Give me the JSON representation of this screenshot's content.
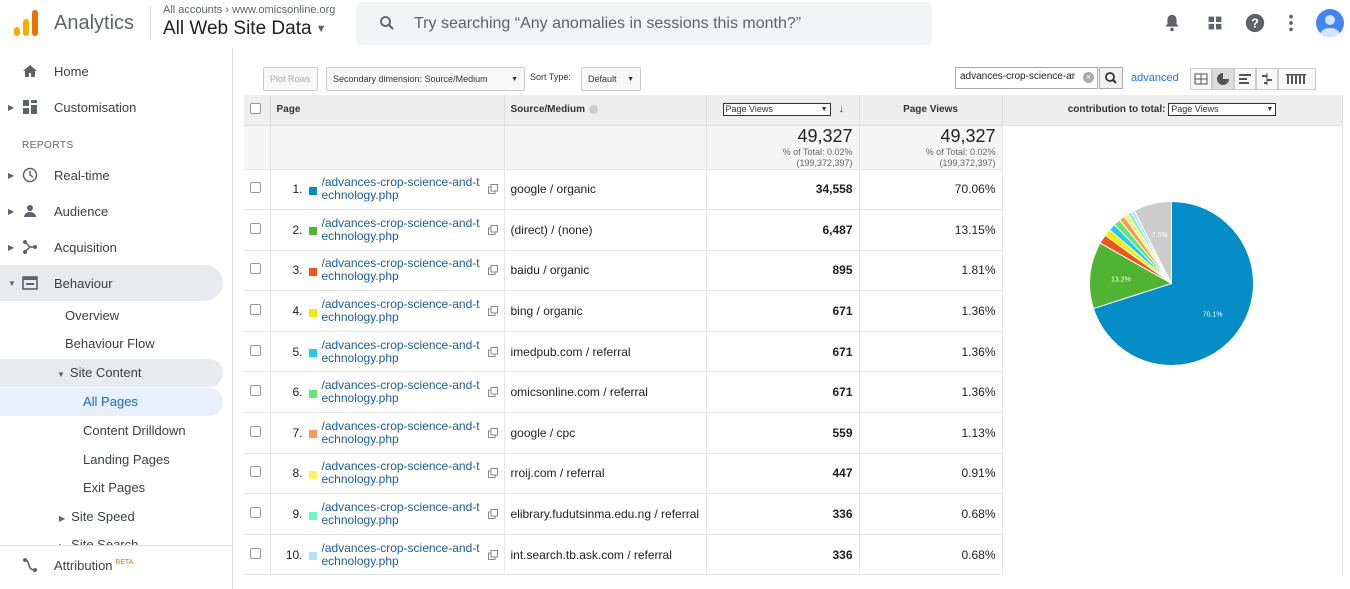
{
  "header": {
    "app_name": "Analytics",
    "account_crumb": "All accounts › www.omicsonline.org",
    "view_name": "All Web Site Data",
    "search_placeholder": "Try searching “Any anomalies in sessions this month?”"
  },
  "sidebar": {
    "home": "Home",
    "customisation": "Customisation",
    "reports_section": "REPORTS",
    "realtime": "Real-time",
    "audience": "Audience",
    "acquisition": "Acquisition",
    "behaviour": "Behaviour",
    "overview": "Overview",
    "behaviour_flow": "Behaviour Flow",
    "site_content": "Site Content",
    "all_pages": "All Pages",
    "content_drilldown": "Content Drilldown",
    "landing_pages": "Landing Pages",
    "exit_pages": "Exit Pages",
    "site_speed": "Site Speed",
    "site_search": "Site Search",
    "attribution": "Attribution",
    "beta": "BETA"
  },
  "toolbar": {
    "plot_rows": "Plot Rows",
    "secondary_dimension": "Secondary dimension: Source/Medium",
    "sort_type_label": "Sort Type:",
    "sort_type_value": "Default",
    "filter_value": "advances-crop-science-ar",
    "advanced": "advanced"
  },
  "table": {
    "col_page": "Page",
    "col_source": "Source/Medium",
    "col_metric_select": "Page Views",
    "col_metric2": "Page Views",
    "col_contribution_label": "contribution to total:",
    "col_contribution_select": "Page Views",
    "totals": {
      "value1": "49,327",
      "pct1": "% of Total: 0.02%",
      "base1": "(199,372,397)",
      "value2": "49,327",
      "pct2": "% of Total: 0.02%",
      "base2": "(199,372,397)"
    },
    "rows": [
      {
        "idx": "1.",
        "page": "/advances-crop-science-and-technology.php",
        "source": "google / organic",
        "views": "34,558",
        "pct": "70.06%",
        "color": "#058dc7"
      },
      {
        "idx": "2.",
        "page": "/advances-crop-science-and-technology.php",
        "source": "(direct) / (none)",
        "views": "6,487",
        "pct": "13.15%",
        "color": "#50b432"
      },
      {
        "idx": "3.",
        "page": "/advances-crop-science-and-technology.php",
        "source": "baidu / organic",
        "views": "895",
        "pct": "1.81%",
        "color": "#ed561b"
      },
      {
        "idx": "4.",
        "page": "/advances-crop-science-and-technology.php",
        "source": "bing / organic",
        "views": "671",
        "pct": "1.36%",
        "color": "#edef00"
      },
      {
        "idx": "5.",
        "page": "/advances-crop-science-and-technology.php",
        "source": "imedpub.com / referral",
        "views": "671",
        "pct": "1.36%",
        "color": "#24cbe5"
      },
      {
        "idx": "6.",
        "page": "/advances-crop-science-and-technology.php",
        "source": "omicsonline.com / referral",
        "views": "671",
        "pct": "1.36%",
        "color": "#64e572"
      },
      {
        "idx": "7.",
        "page": "/advances-crop-science-and-technology.php",
        "source": "google / cpc",
        "views": "559",
        "pct": "1.13%",
        "color": "#ff9655"
      },
      {
        "idx": "8.",
        "page": "/advances-crop-science-and-technology.php",
        "source": "rroij.com / referral",
        "views": "447",
        "pct": "0.91%",
        "color": "#fff263"
      },
      {
        "idx": "9.",
        "page": "/advances-crop-science-and-technology.php",
        "source": "elibrary.fudutsinma.edu.ng / referral",
        "views": "336",
        "pct": "0.68%",
        "color": "#6af9c4"
      },
      {
        "idx": "10.",
        "page": "/advances-crop-science-and-technology.php",
        "source": "int.search.tb.ask.com / referral",
        "views": "336",
        "pct": "0.68%",
        "color": "#b2deff"
      }
    ]
  },
  "chart_data": {
    "type": "pie",
    "slices": [
      {
        "value": 70.06,
        "color": "#058dc7",
        "label": "70.1%"
      },
      {
        "value": 13.15,
        "color": "#50b432",
        "label": "13.2%"
      },
      {
        "value": 1.81,
        "color": "#ed561b",
        "label": ""
      },
      {
        "value": 1.36,
        "color": "#edef00",
        "label": ""
      },
      {
        "value": 1.36,
        "color": "#24cbe5",
        "label": ""
      },
      {
        "value": 1.36,
        "color": "#64e572",
        "label": ""
      },
      {
        "value": 1.13,
        "color": "#ff9655",
        "label": ""
      },
      {
        "value": 0.91,
        "color": "#fff263",
        "label": ""
      },
      {
        "value": 0.68,
        "color": "#6af9c4",
        "label": ""
      },
      {
        "value": 0.68,
        "color": "#b2deff",
        "label": ""
      },
      {
        "value": 7.5,
        "color": "#cccccc",
        "label": "7.5%"
      }
    ]
  }
}
